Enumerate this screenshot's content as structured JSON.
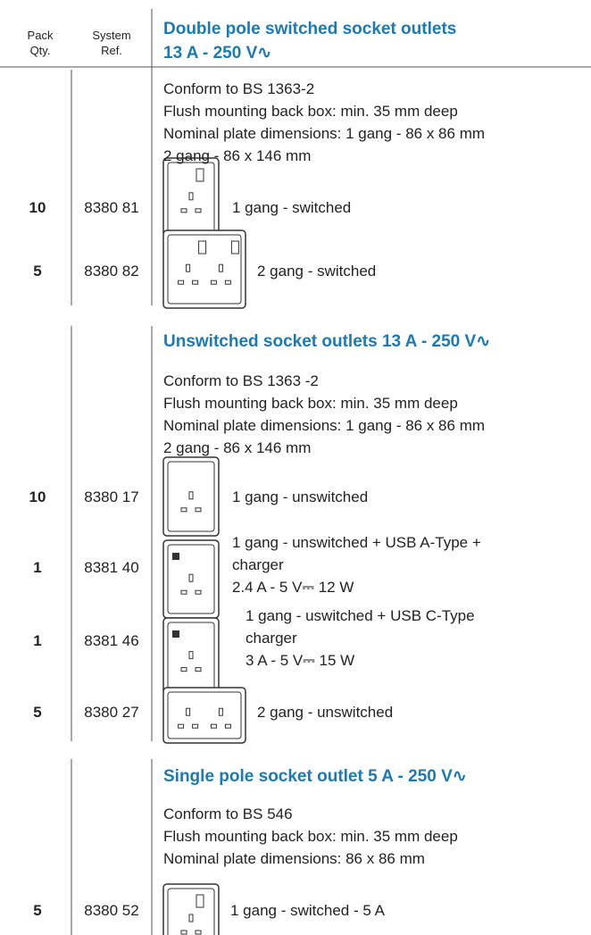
{
  "header": {
    "pack_qty": [
      "Pack",
      "Qty."
    ],
    "system_ref": [
      "System",
      "Ref."
    ]
  },
  "sections": [
    {
      "title": [
        "Double pole switched socket outlets",
        "13 A - 250 V∿"
      ],
      "notes": [
        "Conform to BS 1363-2",
        "Flush mounting back box: min. 35 mm deep",
        "Nominal plate dimensions: 1 gang - 86 x 86 mm",
        "2 gang - 86 x 146 mm"
      ],
      "items": [
        {
          "qty": 10,
          "ref": "8380 81",
          "description": [
            "1 gang - switched"
          ]
        },
        {
          "qty": 5,
          "ref": "8380 82",
          "description": [
            "2 gang - switched"
          ]
        }
      ]
    },
    {
      "title": [
        "Unswitched socket outlets 13 A - 250 V∿"
      ],
      "notes": [
        "Conform to BS 1363 -2",
        "Flush mounting back box: min. 35 mm deep",
        "Nominal plate dimensions: 1 gang - 86 x 86 mm",
        "2 gang - 86 x 146 mm"
      ],
      "items": [
        {
          "qty": 10,
          "ref": "8380 17",
          "description": [
            "1 gang - unswitched"
          ]
        },
        {
          "qty": 1,
          "ref": "8381 40",
          "description": [
            "1 gang - unswitched + USB A-Type +",
            "charger",
            "2.4 A - 5 V⎓ 12 W"
          ]
        },
        {
          "qty": 1,
          "ref": "8381 46",
          "description": [
            "1 gang - uswitched + USB C-Type",
            "charger",
            "3 A - 5 V⎓ 15 W"
          ]
        },
        {
          "qty": 5,
          "ref": "8380 27",
          "description": [
            "2 gang - unswitched"
          ]
        }
      ]
    },
    {
      "title": [
        "Single pole socket outlet 5 A - 250 V∿"
      ],
      "notes": [
        "Conform to BS 546",
        "Flush mounting back box: min. 35 mm deep",
        "Nominal plate dimensions: 86 x 86 mm"
      ],
      "items": [
        {
          "qty": 5,
          "ref": "8380 52",
          "description": [
            "1 gang - switched - 5 A"
          ]
        }
      ]
    }
  ]
}
